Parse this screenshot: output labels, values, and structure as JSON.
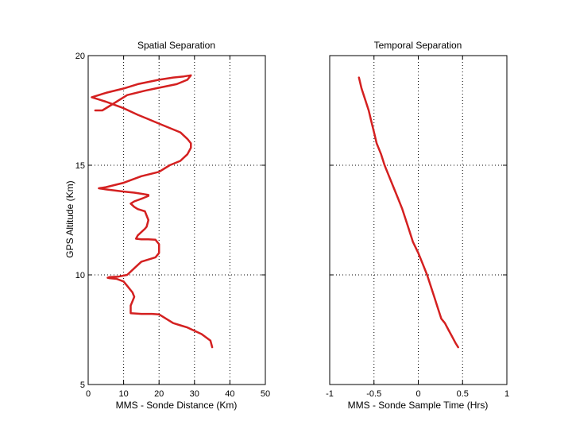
{
  "chart_data": [
    {
      "type": "line",
      "title": "Spatial Separation",
      "xlabel": "MMS - Sonde Distance (Km)",
      "ylabel": "GPS Altitude (Km)",
      "xlim": [
        0,
        50
      ],
      "ylim": [
        5,
        20
      ],
      "xticks": [
        0,
        10,
        20,
        30,
        40,
        50
      ],
      "yticks": [
        5,
        10,
        15,
        20
      ],
      "grid": true,
      "series": [
        {
          "name": "Spatial Separation",
          "color": "#d42020",
          "x": [
            35,
            34.5,
            32,
            30,
            28,
            26,
            24,
            22,
            20,
            18,
            15,
            12,
            12,
            12,
            12.5,
            13,
            12.5,
            11,
            10,
            8,
            6,
            5.5,
            6,
            8.5,
            11,
            13,
            15,
            19,
            20,
            20,
            19,
            17,
            15,
            13.5,
            14,
            16,
            16.5,
            17,
            16.5,
            16,
            15,
            14,
            13,
            12,
            13,
            15.5,
            17,
            17,
            15,
            13,
            10,
            5,
            3,
            5,
            10,
            15,
            20,
            23,
            26,
            28,
            29,
            29,
            28,
            26,
            23,
            20,
            17,
            14,
            10,
            5,
            1,
            5,
            10,
            14,
            17,
            20,
            24,
            27,
            29,
            28,
            25,
            22,
            19,
            16,
            11,
            8,
            6,
            4,
            2
          ],
          "y": [
            6.7,
            7.0,
            7.3,
            7.45,
            7.6,
            7.7,
            7.8,
            8.0,
            8.2,
            8.22,
            8.22,
            8.25,
            8.4,
            8.6,
            8.8,
            9.0,
            9.2,
            9.5,
            9.7,
            9.82,
            9.85,
            9.87,
            9.9,
            9.92,
            10.0,
            10.3,
            10.6,
            10.8,
            11.0,
            11.4,
            11.6,
            11.62,
            11.62,
            11.65,
            11.8,
            12.1,
            12.2,
            12.5,
            12.7,
            12.9,
            12.95,
            13.0,
            13.1,
            13.25,
            13.35,
            13.5,
            13.6,
            13.65,
            13.7,
            13.75,
            13.8,
            13.9,
            13.95,
            14.0,
            14.2,
            14.5,
            14.7,
            15.0,
            15.2,
            15.5,
            15.8,
            16.0,
            16.2,
            16.5,
            16.7,
            16.9,
            17.1,
            17.3,
            17.6,
            17.9,
            18.1,
            18.3,
            18.5,
            18.7,
            18.8,
            18.9,
            19.0,
            19.05,
            19.1,
            18.9,
            18.7,
            18.6,
            18.5,
            18.4,
            18.2,
            17.9,
            17.7,
            17.5,
            17.5
          ]
        }
      ]
    },
    {
      "type": "line",
      "title": "Temporal Separation",
      "xlabel": "MMS - Sonde Sample Time (Hrs)",
      "ylabel": "",
      "xlim": [
        -1,
        1
      ],
      "ylim": [
        5,
        20
      ],
      "xticks": [
        -1,
        -0.5,
        0,
        0.5,
        1
      ],
      "yticks": [
        5,
        10,
        15,
        20
      ],
      "grid": true,
      "series": [
        {
          "name": "Temporal Separation",
          "color": "#d42020",
          "x": [
            -0.67,
            -0.64,
            -0.6,
            -0.56,
            -0.53,
            -0.5,
            -0.47,
            -0.42,
            -0.38,
            -0.33,
            -0.28,
            -0.23,
            -0.18,
            -0.14,
            -0.1,
            -0.06,
            0.0,
            0.05,
            0.1,
            0.14,
            0.18,
            0.22,
            0.26,
            0.3,
            0.34,
            0.38,
            0.42,
            0.45
          ],
          "y": [
            19.0,
            18.5,
            18.0,
            17.5,
            17.0,
            16.5,
            16.0,
            15.5,
            15.0,
            14.5,
            14.0,
            13.5,
            13.0,
            12.5,
            12.0,
            11.5,
            11.0,
            10.5,
            10.0,
            9.5,
            9.0,
            8.5,
            8.0,
            7.8,
            7.5,
            7.2,
            6.9,
            6.7
          ]
        }
      ]
    }
  ]
}
